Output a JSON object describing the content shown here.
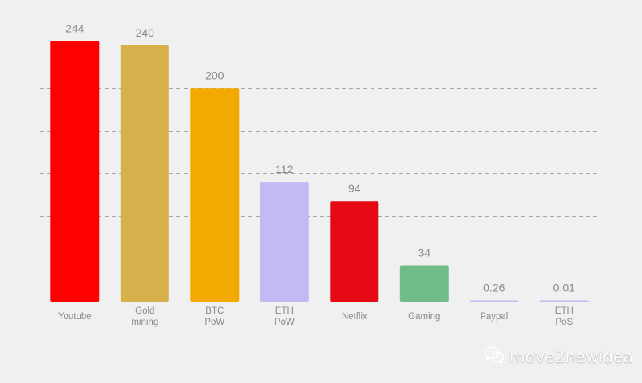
{
  "chart_data": {
    "type": "bar",
    "categories": [
      [
        "Youtube"
      ],
      [
        "Gold",
        "mining"
      ],
      [
        "BTC",
        "PoW"
      ],
      [
        "ETH",
        "PoW"
      ],
      [
        "Netflix"
      ],
      [
        "Gaming"
      ],
      [
        "Paypal"
      ],
      [
        "ETH",
        "PoS"
      ]
    ],
    "values": [
      244,
      240,
      200,
      112,
      94,
      34,
      0.26,
      0.01
    ],
    "value_labels": [
      "244",
      "240",
      "200",
      "112",
      "94",
      "34",
      "0.26",
      "0.01"
    ],
    "colors": [
      "#ff0000",
      "#d6b04a",
      "#f2a900",
      "#c4b8f5",
      "#e50914",
      "#71bd8a",
      "#c4b8f5",
      "#c4b8f5"
    ],
    "ylim": [
      0,
      260
    ],
    "grid": true,
    "grid_lines": [
      40,
      80,
      120,
      160,
      200
    ],
    "title": "",
    "xlabel": "",
    "ylabel": ""
  },
  "watermark": {
    "text": "move2newidea",
    "icon": "wechat-icon"
  }
}
